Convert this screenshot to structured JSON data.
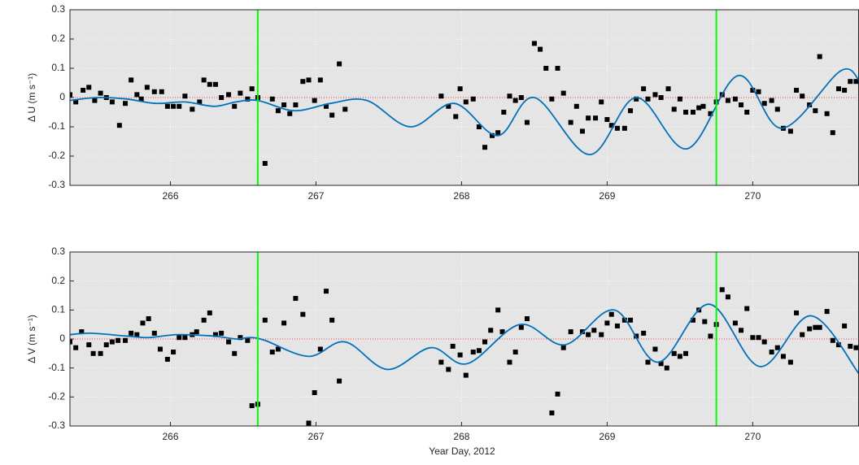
{
  "chart_data": [
    {
      "type": "scatter",
      "ylabel": "Δ U (m s⁻¹)",
      "xlim": [
        265.31,
        270.73
      ],
      "xticks": [
        266,
        267,
        268,
        269,
        270
      ],
      "ylim": [
        -0.3,
        0.3
      ],
      "yticks": [
        0.3,
        0.2,
        0.1,
        0,
        -0.1,
        -0.2,
        -0.3
      ],
      "grid": true,
      "background": "#e5e5e5",
      "vlines": [
        266.6,
        269.75
      ],
      "vline_color": "#00ff00",
      "hline": 0,
      "hline_color": "#ff0000",
      "series": [
        {
          "style": "markers",
          "color": "#000000",
          "x": [
            265.31,
            265.35,
            265.4,
            265.44,
            265.48,
            265.52,
            265.56,
            265.6,
            265.65,
            265.69,
            265.73,
            265.77,
            265.8,
            265.84,
            265.89,
            265.94,
            265.98,
            266.02,
            266.06,
            266.1,
            266.15,
            266.2,
            266.23,
            266.27,
            266.31,
            266.35,
            266.4,
            266.44,
            266.48,
            266.53,
            266.56,
            266.6,
            266.65,
            266.7,
            266.74,
            266.78,
            266.82,
            266.86,
            266.91,
            266.95,
            266.99,
            267.03,
            267.07,
            267.11,
            267.16,
            267.2,
            267.86,
            267.91,
            267.96,
            267.99,
            268.03,
            268.08,
            268.12,
            268.16,
            268.21,
            268.25,
            268.29,
            268.33,
            268.37,
            268.41,
            268.45,
            268.5,
            268.54,
            268.58,
            268.62,
            268.66,
            268.7,
            268.75,
            268.79,
            268.83,
            268.87,
            268.92,
            268.96,
            269.0,
            269.03,
            269.07,
            269.12,
            269.16,
            269.2,
            269.25,
            269.28,
            269.33,
            269.37,
            269.42,
            269.46,
            269.5,
            269.54,
            269.59,
            269.63,
            269.66,
            269.71,
            269.75,
            269.79,
            269.83,
            269.88,
            269.92,
            269.96,
            270.0,
            270.04,
            270.08,
            270.13,
            270.17,
            270.21,
            270.26,
            270.3,
            270.34,
            270.39,
            270.43,
            270.46,
            270.51,
            270.55,
            270.59,
            270.63,
            270.67,
            270.71
          ],
          "values": [
            0.01,
            -0.015,
            0.025,
            0.035,
            -0.01,
            0.015,
            0,
            -0.015,
            -0.095,
            -0.02,
            0.06,
            0.01,
            -0.005,
            0.035,
            0.02,
            0.02,
            -0.03,
            -0.03,
            -0.03,
            0.005,
            -0.04,
            -0.015,
            0.06,
            0.045,
            0.045,
            0,
            0.01,
            -0.03,
            0.015,
            -0.005,
            0.03,
            0,
            -0.225,
            -0.005,
            -0.045,
            -0.025,
            -0.055,
            -0.025,
            0.055,
            0.06,
            -0.01,
            0.06,
            -0.03,
            -0.06,
            0.115,
            -0.04,
            0.005,
            -0.03,
            -0.065,
            0.03,
            -0.015,
            -0.005,
            -0.1,
            -0.17,
            -0.13,
            -0.12,
            -0.05,
            0.005,
            -0.01,
            0,
            -0.085,
            0.185,
            0.165,
            0.1,
            -0.005,
            0.1,
            0.015,
            -0.085,
            -0.03,
            -0.115,
            -0.07,
            -0.07,
            -0.015,
            -0.075,
            -0.095,
            -0.105,
            -0.105,
            -0.045,
            -0.005,
            0.03,
            -0.005,
            0.01,
            0,
            0.03,
            -0.04,
            -0.005,
            -0.05,
            -0.05,
            -0.035,
            -0.03,
            -0.055,
            -0.015,
            0.01,
            -0.01,
            -0.005,
            -0.025,
            -0.05,
            0.025,
            0.02,
            -0.02,
            -0.01,
            -0.04,
            -0.105,
            -0.115,
            0.025,
            0.005,
            -0.025,
            -0.045,
            0.14,
            -0.055,
            -0.12,
            0.03,
            0.025,
            0.055,
            0.055
          ]
        },
        {
          "style": "line",
          "color": "#0072bd",
          "x": [
            265.31,
            265.5,
            265.7,
            265.9,
            266.1,
            266.3,
            266.45,
            266.6,
            266.85,
            267.1,
            267.35,
            267.65,
            267.95,
            268.25,
            268.5,
            268.88,
            269.2,
            269.55,
            269.9,
            270.2,
            270.6,
            270.73
          ],
          "values": [
            -0.01,
            0,
            -0.005,
            -0.02,
            -0.015,
            -0.03,
            -0.015,
            -0.01,
            -0.045,
            -0.02,
            -0.01,
            -0.1,
            -0.02,
            -0.13,
            0,
            -0.195,
            0,
            -0.175,
            0.075,
            -0.105,
            0.09,
            0.06
          ]
        }
      ]
    },
    {
      "type": "scatter",
      "ylabel": "Δ V (m s⁻¹)",
      "xlabel": "Year Day, 2012",
      "xlim": [
        265.31,
        270.73
      ],
      "xticks": [
        266,
        267,
        268,
        269,
        270
      ],
      "ylim": [
        -0.3,
        0.3
      ],
      "yticks": [
        0.3,
        0.2,
        0.1,
        0,
        -0.1,
        -0.2,
        -0.3
      ],
      "grid": true,
      "background": "#e5e5e5",
      "vlines": [
        266.6,
        269.75
      ],
      "vline_color": "#00ff00",
      "hline": 0,
      "hline_color": "#ff0000",
      "series": [
        {
          "style": "markers",
          "color": "#000000",
          "x": [
            265.31,
            265.35,
            265.39,
            265.44,
            265.47,
            265.52,
            265.56,
            265.6,
            265.64,
            265.69,
            265.73,
            265.77,
            265.81,
            265.85,
            265.89,
            265.93,
            265.98,
            266.02,
            266.06,
            266.1,
            266.15,
            266.18,
            266.23,
            266.27,
            266.31,
            266.35,
            266.4,
            266.44,
            266.48,
            266.53,
            266.56,
            266.6,
            266.65,
            266.7,
            266.74,
            266.78,
            266.86,
            266.91,
            266.95,
            266.99,
            267.03,
            267.07,
            267.11,
            267.16,
            267.86,
            267.91,
            267.94,
            267.99,
            268.03,
            268.08,
            268.12,
            268.16,
            268.2,
            268.25,
            268.28,
            268.33,
            268.37,
            268.41,
            268.45,
            268.62,
            268.66,
            268.7,
            268.75,
            268.83,
            268.87,
            268.91,
            268.96,
            269.0,
            269.03,
            269.07,
            269.12,
            269.16,
            269.2,
            269.25,
            269.28,
            269.33,
            269.37,
            269.41,
            269.46,
            269.5,
            269.54,
            269.59,
            269.63,
            269.67,
            269.71,
            269.75,
            269.79,
            269.83,
            269.88,
            269.92,
            269.96,
            270.0,
            270.04,
            270.08,
            270.13,
            270.17,
            270.21,
            270.26,
            270.3,
            270.34,
            270.39,
            270.43,
            270.46,
            270.51,
            270.55,
            270.59,
            270.63,
            270.67,
            270.71
          ],
          "values": [
            -0.01,
            -0.03,
            0.025,
            -0.02,
            -0.05,
            -0.05,
            -0.02,
            -0.01,
            -0.005,
            -0.005,
            0.02,
            0.015,
            0.055,
            0.07,
            0.02,
            -0.035,
            -0.07,
            -0.045,
            0.005,
            0.005,
            0.015,
            0.025,
            0.065,
            0.09,
            0.015,
            0.02,
            -0.01,
            -0.05,
            0.005,
            -0.005,
            -0.23,
            -0.225,
            0.065,
            -0.045,
            -0.035,
            0.055,
            0.14,
            0.085,
            -0.29,
            -0.185,
            -0.035,
            0.165,
            0.065,
            -0.145,
            -0.08,
            -0.105,
            -0.025,
            -0.055,
            -0.125,
            -0.045,
            -0.04,
            -0.01,
            0.03,
            0.1,
            0.025,
            -0.08,
            -0.045,
            0.04,
            0.07,
            -0.255,
            -0.19,
            -0.03,
            0.025,
            0.025,
            0.015,
            0.03,
            0.015,
            0.055,
            0.085,
            0.045,
            0.065,
            0.065,
            0.01,
            0.02,
            -0.08,
            -0.035,
            -0.085,
            -0.1,
            -0.05,
            -0.06,
            -0.05,
            0.065,
            0.1,
            0.06,
            0.01,
            0.05,
            0.17,
            0.145,
            0.055,
            0.03,
            0.105,
            0.005,
            0.005,
            -0.01,
            -0.045,
            -0.03,
            -0.06,
            -0.08,
            0.09,
            0.015,
            0.035,
            0.04,
            0.04,
            0.095,
            -0.005,
            -0.02,
            0.045,
            -0.025,
            -0.03
          ]
        },
        {
          "style": "line",
          "color": "#0072bd",
          "x": [
            265.31,
            265.45,
            265.7,
            265.85,
            266.05,
            266.3,
            266.45,
            266.55,
            266.65,
            266.95,
            267.2,
            267.49,
            267.79,
            268.04,
            268.4,
            268.71,
            269.05,
            269.35,
            269.7,
            270.05,
            270.4,
            270.73
          ],
          "values": [
            0.015,
            0.02,
            0.01,
            0.005,
            0.015,
            0.01,
            0,
            0.005,
            -0.005,
            -0.06,
            -0.01,
            -0.105,
            -0.03,
            -0.085,
            0.05,
            -0.02,
            0.1,
            -0.08,
            0.12,
            -0.095,
            0.08,
            -0.12
          ]
        }
      ]
    }
  ]
}
